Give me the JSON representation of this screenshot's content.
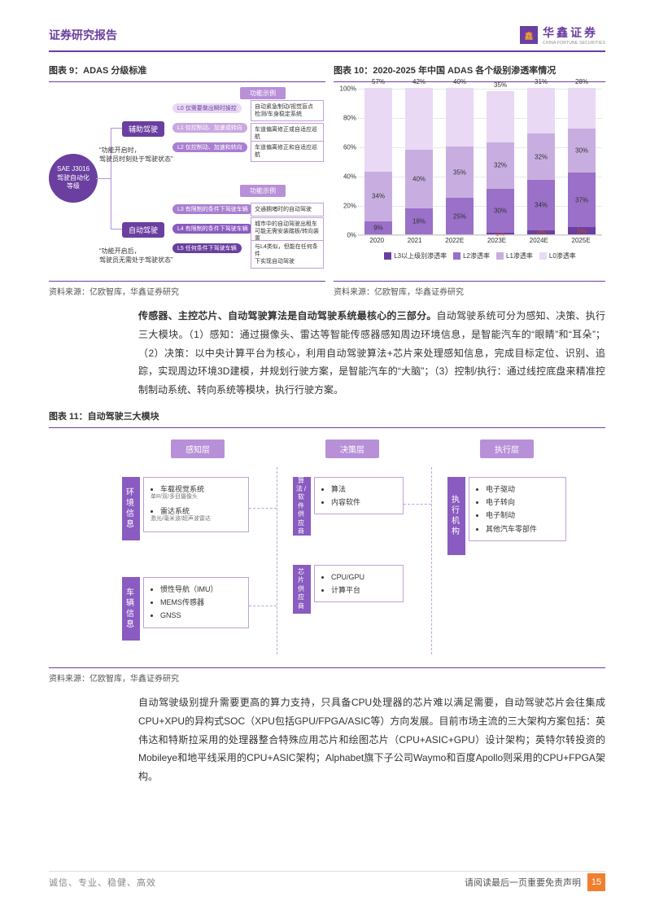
{
  "header": {
    "title": "证券研究报告",
    "logo_cn": "华鑫证券",
    "logo_en": "CHINA FORTUNE SECURITIES",
    "logo_badge": "鑫"
  },
  "fig9": {
    "title": "图表 9：ADAS 分级标准",
    "source": "资料来源：亿欧智库，华鑫证券研究",
    "sae": "SAE J3016\n驾驶自动化\n等级",
    "branch1": "辅助驾驶",
    "branch2": "自动驾驶",
    "ex_header": "功能示例",
    "levels": [
      {
        "id": "L0",
        "label": "仅需要做出瞬时操控",
        "ex": "自动紧急制动/视觉盲点\n检测/车身稳定系统"
      },
      {
        "id": "L1",
        "label": "仅控制动、加速或转向",
        "ex": "车道偏离修正或自适应巡航"
      },
      {
        "id": "L2",
        "label": "仅控制动、加速和转向",
        "ex": "车道偏离修正和自适应巡航"
      },
      {
        "id": "L3",
        "label": "有限制的条件下驾驶车辆",
        "ex": "交通拥堵时的自动驾驶"
      },
      {
        "id": "L4",
        "label": "有限制的条件下驾驶车辆",
        "ex": "城市中的自动驾驶出租车\n可能无需安装踏板/转向装置"
      },
      {
        "id": "L5",
        "label": "任何条件下驾驶车辆",
        "ex": "与L4类似，但能在任何条件\n下实现自动驾驶"
      }
    ],
    "quote1": "“功能开启时，\n驾驶员时刻处于驾驶状态”",
    "quote2": "“功能开启后，\n驾驶员无需处于驾驶状态”"
  },
  "fig10": {
    "title": "图表 10：2020-2025 年中国 ADAS 各个级别渗透率情况",
    "source": "资料来源：亿欧智库，华鑫证券研究",
    "ylim": [
      0,
      100
    ],
    "ytick_step": 20,
    "categories": [
      "2020",
      "2021",
      "2022E",
      "2023E",
      "2024E",
      "2025E"
    ],
    "series": [
      {
        "name": "L3以上级别渗透率",
        "color": "#6a3fa0",
        "values": [
          0,
          0,
          0,
          1,
          3,
          5
        ],
        "labels": [
          "",
          "",
          "",
          "1%",
          "3%",
          "5%"
        ],
        "label_color": "#c05020"
      },
      {
        "name": "L2渗透率",
        "color": "#9a70c8",
        "values": [
          9,
          18,
          25,
          30,
          34,
          37
        ],
        "labels": [
          "9%",
          "18%",
          "25%",
          "30%",
          "34%",
          "37%"
        ]
      },
      {
        "name": "L1渗透率",
        "color": "#c8aee0",
        "values": [
          34,
          40,
          35,
          32,
          32,
          30
        ],
        "labels": [
          "34%",
          "40%",
          "35%",
          "32%",
          "32%",
          "30%"
        ]
      },
      {
        "name": "L0渗透率",
        "color": "#e9d9f4",
        "values": [
          57,
          42,
          40,
          35,
          31,
          28
        ],
        "labels": [
          "57%",
          "42%",
          "40%",
          "35%",
          "31%",
          "28%"
        ]
      }
    ],
    "legend_prefix": "■"
  },
  "para1": "<b>传感器、主控芯片、自动驾驶算法是自动驾驶系统最核心的三部分。</b>自动驾驶系统可分为感知、决策、执行三大模块。（1）感知：通过摄像头、雷达等智能传感器感知周边环境信息，是智能汽车的“眼睛”和“耳朵”；（2）决策：以中央计算平台为核心，利用自动驾驶算法+芯片来处理感知信息，完成目标定位、识别、追踪，实现周边环境3D建模，并规划行驶方案，是智能汽车的“大脑”；（3）控制/执行：通过线控底盘来精准控制制动系统、转向系统等模块，执行行驶方案。",
  "fig11": {
    "title": "图表 11：自动驾驶三大模块",
    "source": "资料来源：亿欧智库，华鑫证券研究",
    "layers": [
      "感知层",
      "决策层",
      "执行层"
    ],
    "groups": [
      {
        "label": "环境信息",
        "items": [
          "车载视觉系统",
          "雷达系统"
        ],
        "subs": [
          "单R/双/多目摄像头",
          "激光/毫米波/超声波雷达"
        ]
      },
      {
        "label": "车辆信息",
        "items": [
          "惯性导航（IMU）",
          "MEMS传感器",
          "GNSS"
        ]
      },
      {
        "label": "算法/软件供应商",
        "items": [
          "算法",
          "内容软件"
        ]
      },
      {
        "label": "芯片供应商",
        "items": [
          "CPU/GPU",
          "计算平台"
        ]
      },
      {
        "label": "执行机构",
        "items": [
          "电子驱动",
          "电子转向",
          "电子制动",
          "其他汽车零部件"
        ]
      }
    ]
  },
  "para2": "自动驾驶级别提升需要更高的算力支持，只具备CPU处理器的芯片难以满足需要，自动驾驶芯片会往集成CPU+XPU的异构式SOC（XPU包括GPU/FPGA/ASIC等）方向发展。目前市场主流的三大架构方案包括：英伟达和特斯拉采用的处理器整合特殊应用芯片和绘图芯片（CPU+ASIC+GPU）设计架构；英特尔转投资的Mobileye和地平线采用的CPU+ASIC架构；Alphabet旗下子公司Waymo和百度Apollo则采用的CPU+FPGA架构。",
  "footer": {
    "left": "诚信、专业、稳健、高效",
    "right": "请阅读最后一页重要免责声明",
    "page": "15"
  }
}
